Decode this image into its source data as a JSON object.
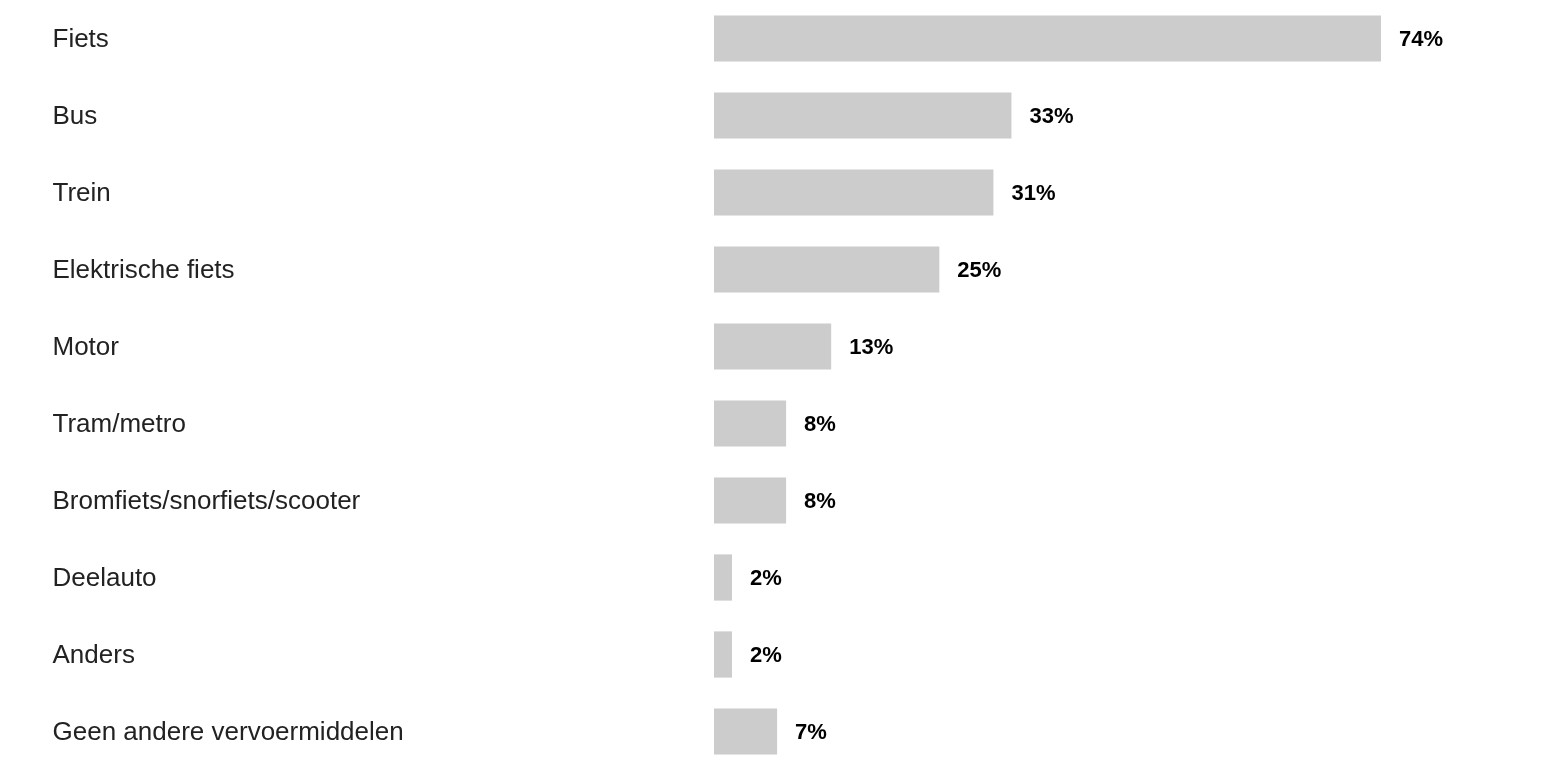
{
  "chart_data": {
    "type": "bar",
    "orientation": "horizontal",
    "categories": [
      "Fiets",
      "Bus",
      "Trein",
      "Elektrische fiets",
      "Motor",
      "Tram/metro",
      "Bromfiets/snorfiets/scooter",
      "Deelauto",
      "Anders",
      "Geen andere vervoermiddelen"
    ],
    "values": [
      74,
      33,
      31,
      25,
      13,
      8,
      8,
      2,
      2,
      7
    ],
    "value_labels": [
      "74%",
      "33%",
      "31%",
      "25%",
      "13%",
      "8%",
      "8%",
      "2%",
      "2%",
      "7%"
    ],
    "color": "#cccccc"
  }
}
